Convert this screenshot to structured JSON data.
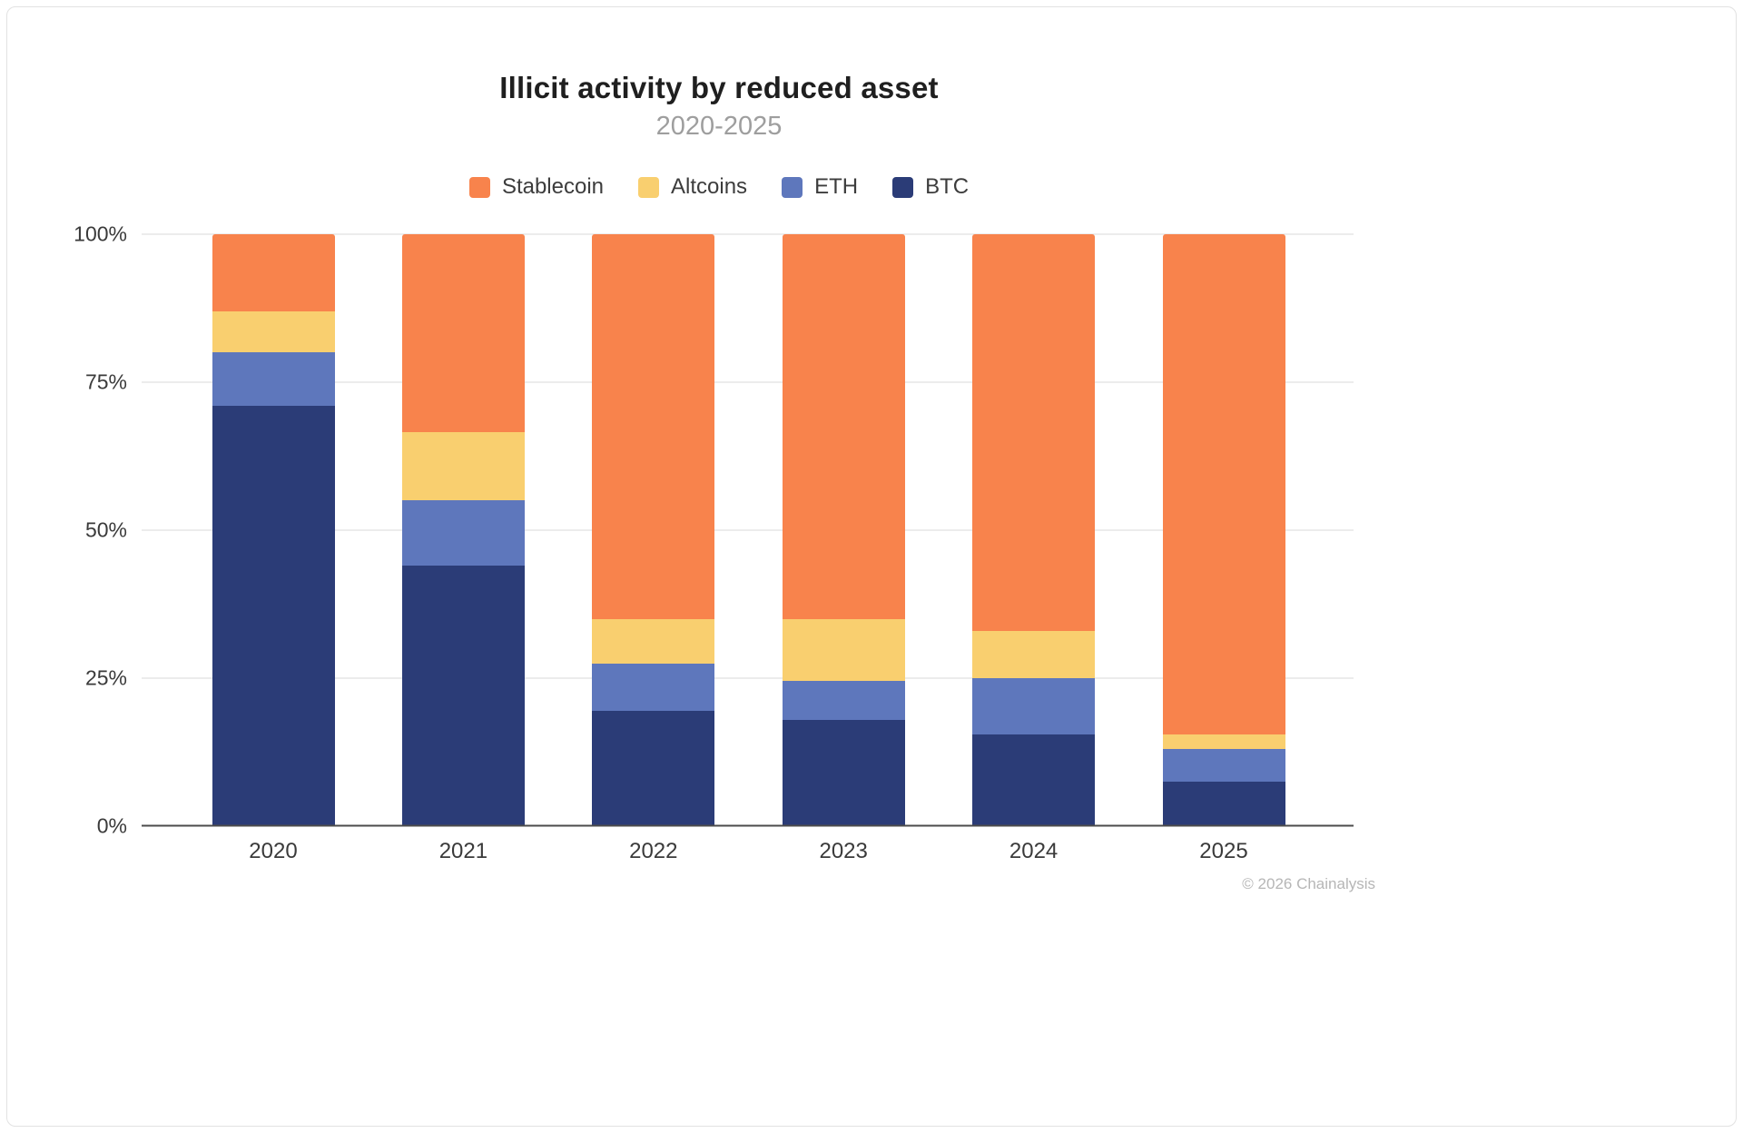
{
  "header": {
    "title": "Illicit activity by reduced asset",
    "subtitle": "2020-2025"
  },
  "footer": {
    "copyright": "© 2026 Chainalysis"
  },
  "chart_data": {
    "type": "bar",
    "stacked": true,
    "unit": "%",
    "title": "Illicit activity by reduced asset",
    "subtitle": "2020-2025",
    "categories": [
      "2020",
      "2021",
      "2022",
      "2023",
      "2024",
      "2025"
    ],
    "series": [
      {
        "name": "BTC",
        "color": "#2b3c77",
        "values": [
          71,
          44,
          19.5,
          18,
          15.5,
          7.5
        ]
      },
      {
        "name": "ETH",
        "color": "#5e77bc",
        "values": [
          9,
          11,
          8,
          6.5,
          9.5,
          5.5
        ]
      },
      {
        "name": "Altcoins",
        "color": "#f9cf6f",
        "values": [
          7,
          11.5,
          7.5,
          10.5,
          8,
          2.5
        ]
      },
      {
        "name": "Stablecoin",
        "color": "#f8834c",
        "values": [
          13,
          33.5,
          65,
          65,
          67,
          84.5
        ]
      }
    ],
    "stack_order_bottom_to_top": [
      "BTC",
      "ETH",
      "Altcoins",
      "Stablecoin"
    ],
    "legend_order": [
      "Stablecoin",
      "Altcoins",
      "ETH",
      "BTC"
    ],
    "legend_position": "top",
    "grid": true,
    "y_axis": {
      "min": 0,
      "max": 100,
      "ticks": [
        "0%",
        "25%",
        "50%",
        "75%",
        "100%"
      ],
      "tick_values": [
        0,
        25,
        50,
        75,
        100
      ]
    }
  }
}
